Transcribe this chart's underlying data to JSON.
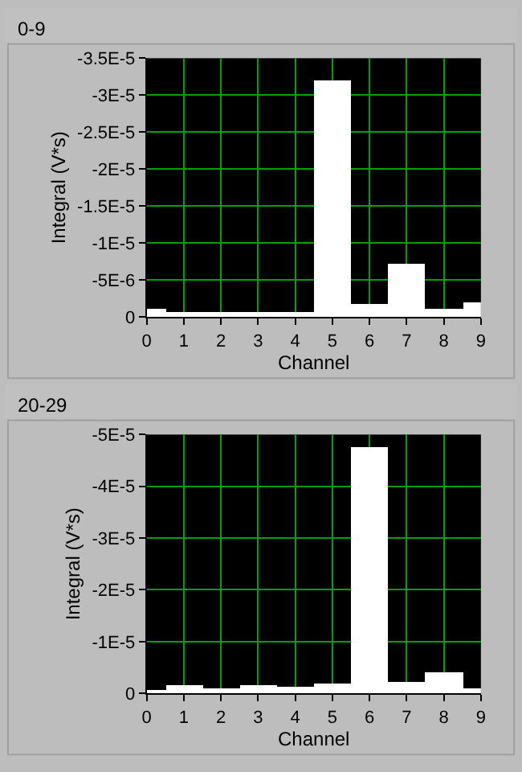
{
  "chart_data": [
    {
      "type": "bar",
      "title": "0-9",
      "xlabel": "Channel",
      "ylabel": "Integral (V*s)",
      "x": [
        0,
        1,
        2,
        3,
        4,
        5,
        6,
        7,
        8,
        9
      ],
      "series": [
        {
          "color": "#ffffff",
          "values": [
            -1.1e-06,
            -7e-07,
            -7e-07,
            -7e-07,
            -7e-07,
            -3.19e-05,
            -1.8e-06,
            -7.1e-06,
            -1.1e-06,
            -2e-06
          ]
        }
      ],
      "xlim": [
        0,
        9
      ],
      "xticks": [
        0,
        1,
        2,
        3,
        4,
        5,
        6,
        7,
        8,
        9
      ],
      "ylim": [
        0,
        -3.5e-05
      ],
      "yticks": [
        0,
        {
          "value": -5e-06,
          "label": "-5E-6"
        },
        {
          "value": -1e-05,
          "label": "-1E-5"
        },
        {
          "value": -1.5e-05,
          "label": "-1.5E-5"
        },
        {
          "value": -2e-05,
          "label": "-2E-5"
        },
        {
          "value": -2.5e-05,
          "label": "-2.5E-5"
        },
        {
          "value": -3e-05,
          "label": "-3E-5"
        },
        {
          "value": -3.5e-05,
          "label": "-3.5E-5"
        }
      ],
      "grid": true
    },
    {
      "type": "bar",
      "title": "20-29",
      "xlabel": "Channel",
      "ylabel": "Integral (V*s)",
      "x": [
        0,
        1,
        2,
        3,
        4,
        5,
        6,
        7,
        8,
        9
      ],
      "series": [
        {
          "color": "#ffffff",
          "values": [
            -4e-07,
            -1.6e-06,
            -8e-07,
            -1.4e-06,
            -1.1e-06,
            -1.7e-06,
            -4.76e-05,
            -2.2e-06,
            -4e-06,
            -8e-07
          ]
        }
      ],
      "xlim": [
        0,
        9
      ],
      "xticks": [
        0,
        1,
        2,
        3,
        4,
        5,
        6,
        7,
        8,
        9
      ],
      "ylim": [
        0,
        -5e-05
      ],
      "yticks": [
        0,
        {
          "value": -1e-05,
          "label": "-1E-5"
        },
        {
          "value": -2e-05,
          "label": "-2E-5"
        },
        {
          "value": -3e-05,
          "label": "-3E-5"
        },
        {
          "value": -4e-05,
          "label": "-4E-5"
        },
        {
          "value": -5e-05,
          "label": "-5E-5"
        }
      ],
      "grid": true
    }
  ]
}
